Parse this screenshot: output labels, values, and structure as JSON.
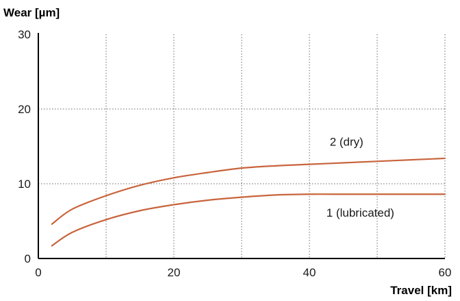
{
  "chart_data": {
    "type": "line",
    "xlabel": "Travel [km]",
    "ylabel": "Wear [µm]",
    "xlim": [
      0,
      60
    ],
    "ylim": [
      0,
      30
    ],
    "x_ticks": [
      0,
      20,
      40,
      60
    ],
    "y_ticks": [
      0,
      10,
      20,
      30
    ],
    "x_grid": [
      10,
      20,
      30,
      40,
      50,
      60
    ],
    "y_grid": [
      10,
      20
    ],
    "grid": true,
    "line_color": "#c8643c",
    "series": [
      {
        "name": "2 (dry)",
        "label": "2 (dry)",
        "x": [
          2,
          5,
          10,
          15,
          20,
          25,
          30,
          35,
          40,
          45,
          50,
          55,
          60
        ],
        "y": [
          4.6,
          6.6,
          8.4,
          9.8,
          10.8,
          11.5,
          12.1,
          12.4,
          12.6,
          12.8,
          13.0,
          13.2,
          13.4
        ]
      },
      {
        "name": "1 (lubricated)",
        "label": "1 (lubricated)",
        "x": [
          2,
          5,
          10,
          15,
          20,
          25,
          30,
          35,
          40,
          45,
          50,
          55,
          60
        ],
        "y": [
          1.7,
          3.5,
          5.2,
          6.4,
          7.2,
          7.8,
          8.2,
          8.5,
          8.6,
          8.6,
          8.6,
          8.6,
          8.6
        ]
      }
    ]
  }
}
